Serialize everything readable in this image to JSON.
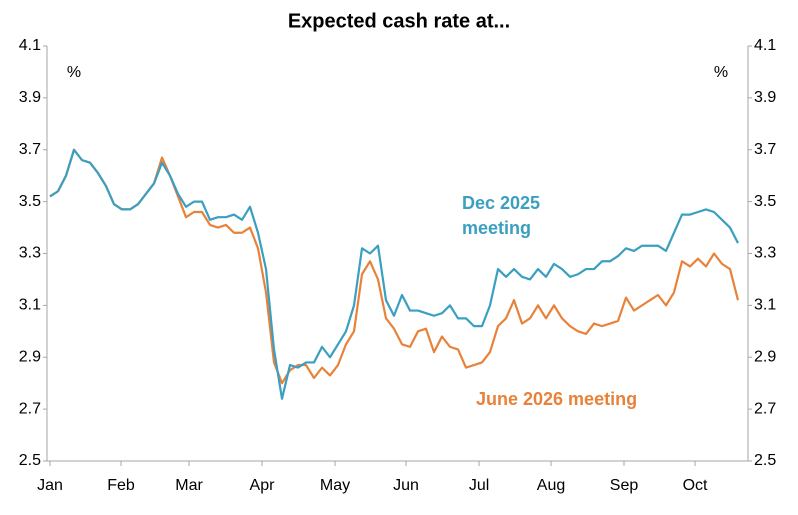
{
  "chart_data": {
    "type": "line",
    "title": "Expected cash rate at...",
    "y_unit": "%",
    "y2_unit": "%",
    "annotations": [
      [
        "Dec 2025",
        "meeting"
      ],
      [
        "June 2026 meeting"
      ]
    ],
    "x": [
      0,
      1,
      2,
      3,
      4,
      5,
      6,
      7,
      8,
      9,
      10,
      11,
      12,
      13,
      14,
      15,
      16,
      17,
      18,
      19,
      20,
      21,
      22,
      23,
      24,
      25,
      26,
      27,
      28,
      29,
      30,
      31,
      32,
      33,
      34,
      35,
      36,
      37,
      38,
      39,
      40,
      41,
      42,
      43,
      44,
      45,
      46,
      47,
      48,
      49,
      50,
      51,
      52,
      53,
      54,
      55,
      56,
      57,
      58,
      59,
      60,
      61,
      62,
      63,
      64,
      65,
      66,
      67,
      68,
      69,
      70,
      71,
      72,
      73,
      74,
      75,
      76,
      77,
      78,
      79,
      80,
      81,
      82,
      83,
      84,
      85,
      86
    ],
    "xlim": [
      -0.375,
      87.25
    ],
    "xticks": [
      {
        "value": 0,
        "label": "Jan"
      },
      {
        "value": 8.88,
        "label": "Feb"
      },
      {
        "value": 17.38,
        "label": "Mar"
      },
      {
        "value": 26.5,
        "label": "Apr"
      },
      {
        "value": 35.63,
        "label": "May"
      },
      {
        "value": 44.5,
        "label": "Jun"
      },
      {
        "value": 53.63,
        "label": "Jul"
      },
      {
        "value": 62.63,
        "label": "Aug"
      },
      {
        "value": 71.75,
        "label": "Sep"
      },
      {
        "value": 80.63,
        "label": "Oct"
      }
    ],
    "ylim": [
      2.5,
      4.1
    ],
    "yticks": [
      2.5,
      2.7,
      2.9,
      3.1,
      3.3,
      3.5,
      3.7,
      3.9,
      4.1
    ],
    "y2lim": [
      2.5,
      4.1
    ],
    "y2ticks": [
      2.5,
      2.7,
      2.9,
      3.1,
      3.3,
      3.5,
      3.7,
      3.9,
      4.1
    ],
    "grid": false,
    "series": [
      {
        "name": "June 2026 meeting",
        "color": "#e8823a",
        "values": [
          3.52,
          3.54,
          3.6,
          3.7,
          3.66,
          3.65,
          3.61,
          3.56,
          3.49,
          3.47,
          3.47,
          3.49,
          3.53,
          3.57,
          3.67,
          3.6,
          3.52,
          3.44,
          3.46,
          3.46,
          3.41,
          3.4,
          3.41,
          3.38,
          3.38,
          3.4,
          3.32,
          3.15,
          2.88,
          2.8,
          2.85,
          2.87,
          2.87,
          2.82,
          2.86,
          2.83,
          2.87,
          2.95,
          3.0,
          3.22,
          3.27,
          3.2,
          3.05,
          3.01,
          2.95,
          2.94,
          3.0,
          3.01,
          2.92,
          2.98,
          2.94,
          2.93,
          2.86,
          2.87,
          2.88,
          2.92,
          3.02,
          3.05,
          3.12,
          3.03,
          3.05,
          3.1,
          3.05,
          3.1,
          3.05,
          3.02,
          3.0,
          2.99,
          3.03,
          3.02,
          3.03,
          3.04,
          3.13,
          3.08,
          3.1,
          3.12,
          3.14,
          3.1,
          3.15,
          3.27,
          3.25,
          3.28,
          3.25,
          3.3,
          3.26,
          3.24,
          3.12
        ]
      },
      {
        "name": "Dec 2025 meeting",
        "color": "#3a9fc0",
        "values": [
          3.52,
          3.54,
          3.6,
          3.7,
          3.66,
          3.65,
          3.61,
          3.56,
          3.49,
          3.47,
          3.47,
          3.49,
          3.53,
          3.57,
          3.65,
          3.6,
          3.53,
          3.48,
          3.5,
          3.5,
          3.43,
          3.44,
          3.44,
          3.45,
          3.43,
          3.48,
          3.38,
          3.24,
          2.93,
          2.74,
          2.87,
          2.86,
          2.88,
          2.88,
          2.94,
          2.9,
          2.95,
          3.0,
          3.1,
          3.32,
          3.3,
          3.33,
          3.12,
          3.06,
          3.14,
          3.08,
          3.08,
          3.07,
          3.06,
          3.07,
          3.1,
          3.05,
          3.05,
          3.02,
          3.02,
          3.1,
          3.24,
          3.21,
          3.24,
          3.21,
          3.2,
          3.24,
          3.21,
          3.26,
          3.24,
          3.21,
          3.22,
          3.24,
          3.24,
          3.27,
          3.27,
          3.29,
          3.32,
          3.31,
          3.33,
          3.33,
          3.33,
          3.31,
          3.38,
          3.45,
          3.45,
          3.46,
          3.47,
          3.46,
          3.43,
          3.4,
          3.34
        ]
      }
    ]
  }
}
